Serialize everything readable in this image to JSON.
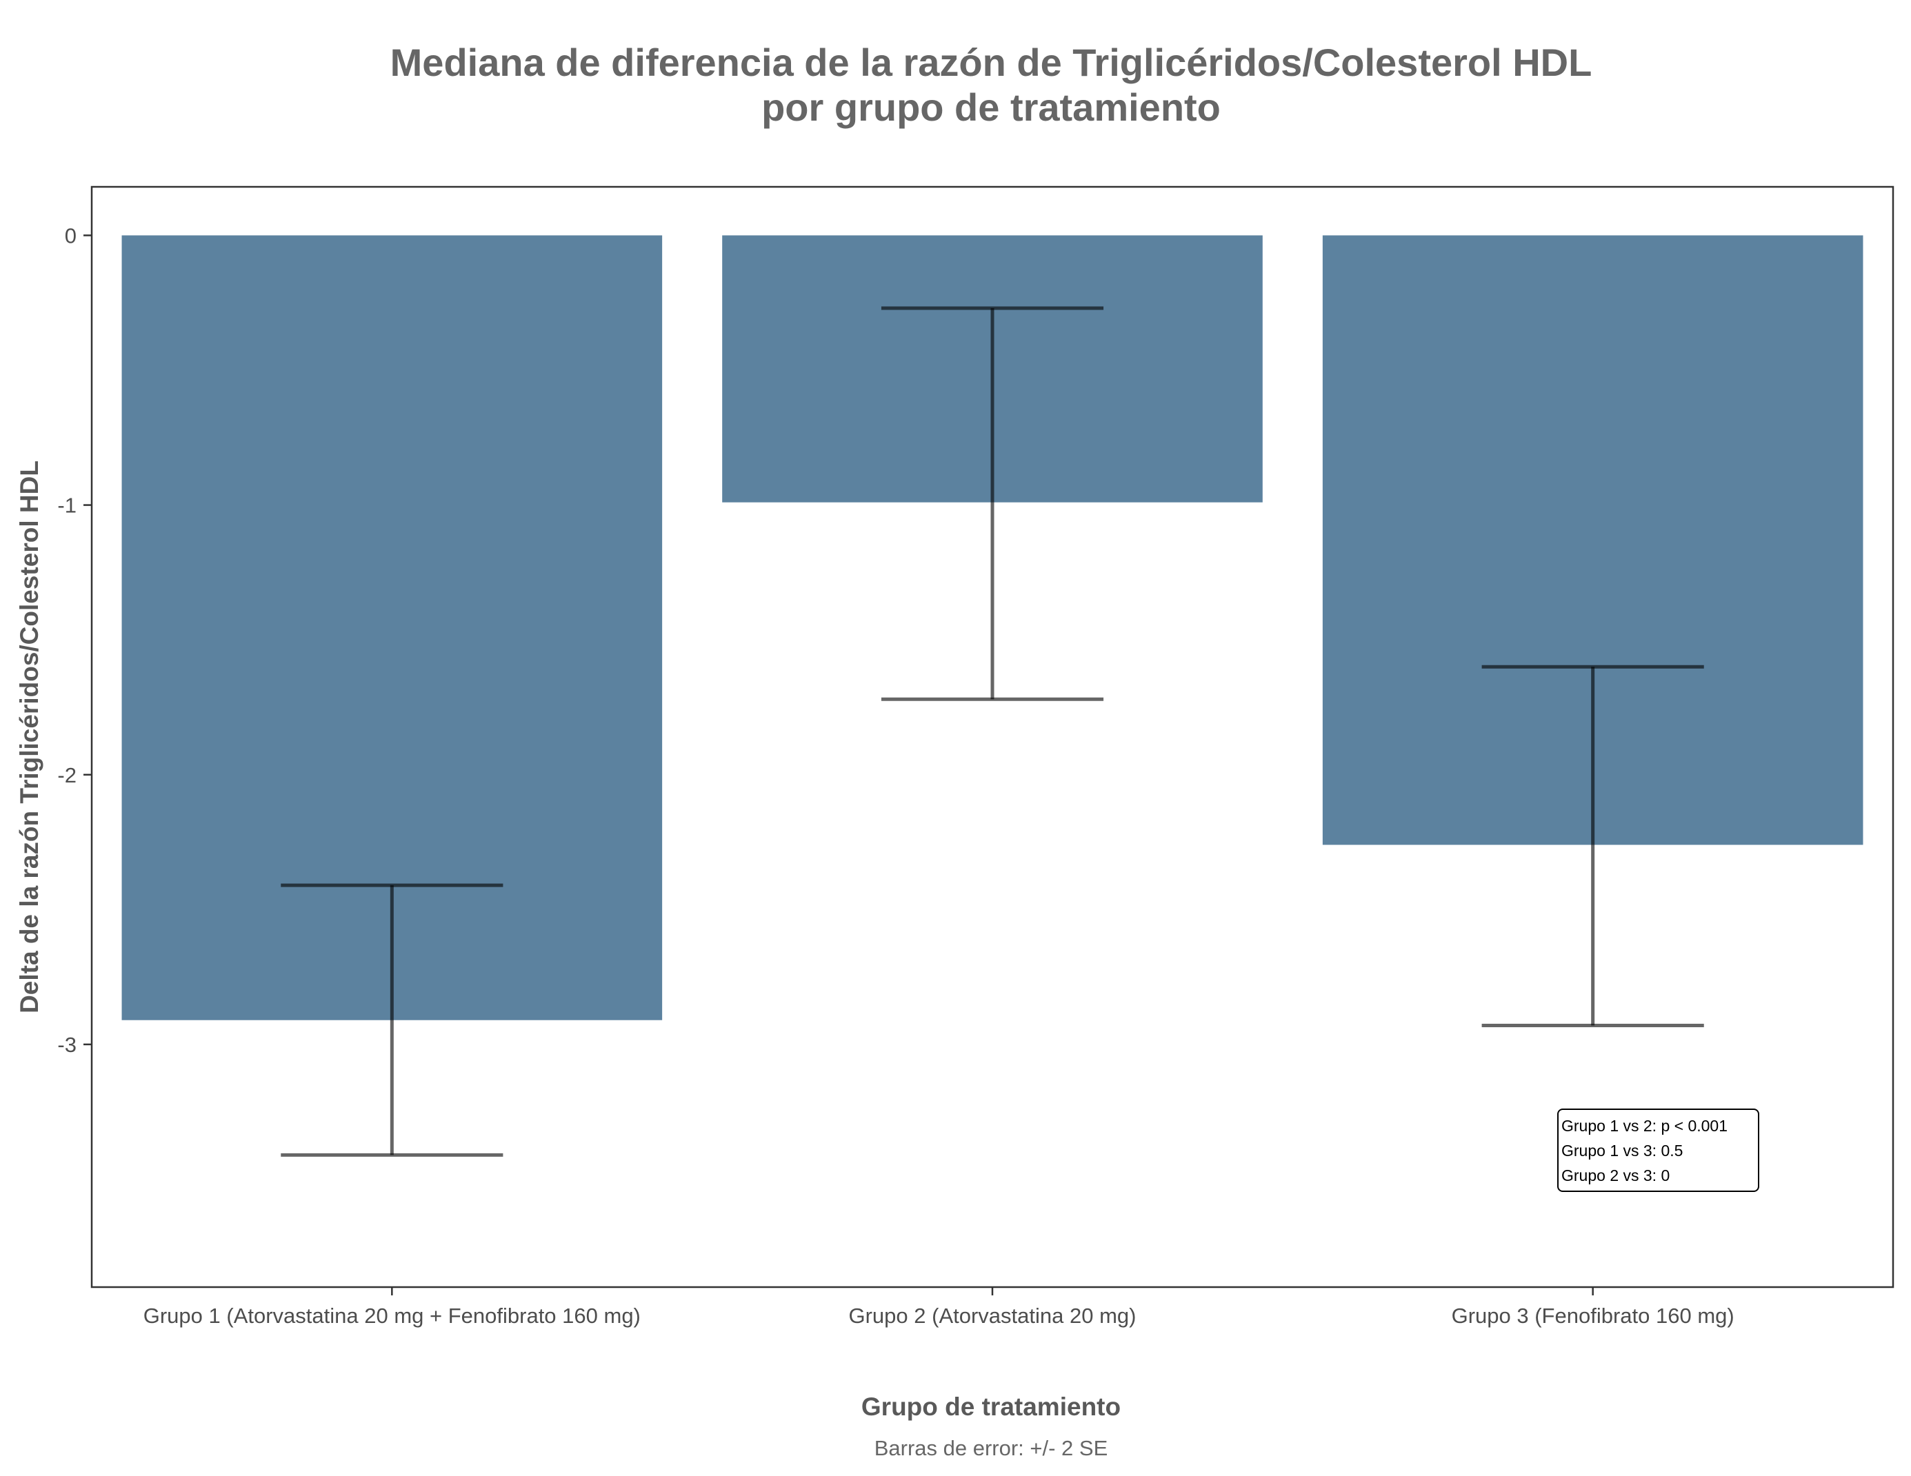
{
  "chart_data": {
    "type": "bar",
    "title": [
      "Mediana de diferencia de la razón de Triglicéridos/Colesterol HDL",
      "por grupo de tratamiento"
    ],
    "xlabel": "Grupo de tratamiento",
    "ylabel": "Delta de la razón Triglicéridos/Colesterol HDL",
    "caption": "Barras de error: +/- 2 SE",
    "categories": [
      "Grupo 1 (Atorvastatina 20 mg + Fenofibrato 160 mg)",
      "Grupo 2 (Atorvastatina 20 mg)",
      "Grupo 3 (Fenofibrato 160 mg)"
    ],
    "values": [
      -2.91,
      -0.99,
      -2.26
    ],
    "error_bars": [
      {
        "upper": -2.41,
        "lower": -3.41
      },
      {
        "upper": -0.27,
        "lower": -1.72
      },
      {
        "upper": -1.6,
        "lower": -2.93
      }
    ],
    "ylim": [
      -3.9,
      0.18
    ],
    "yticks": [
      0,
      -1,
      -2,
      -3
    ],
    "ytick_labels": [
      "0",
      "-1",
      "-2",
      "-3"
    ],
    "grid": false,
    "bar_color": "#5c829f",
    "error_bar_color": "#000000",
    "annotation": [
      "Grupo 1 vs 2: p < 0.001",
      "Grupo 1 vs 3: 0.5",
      "Grupo 2 vs 3: 0"
    ]
  }
}
